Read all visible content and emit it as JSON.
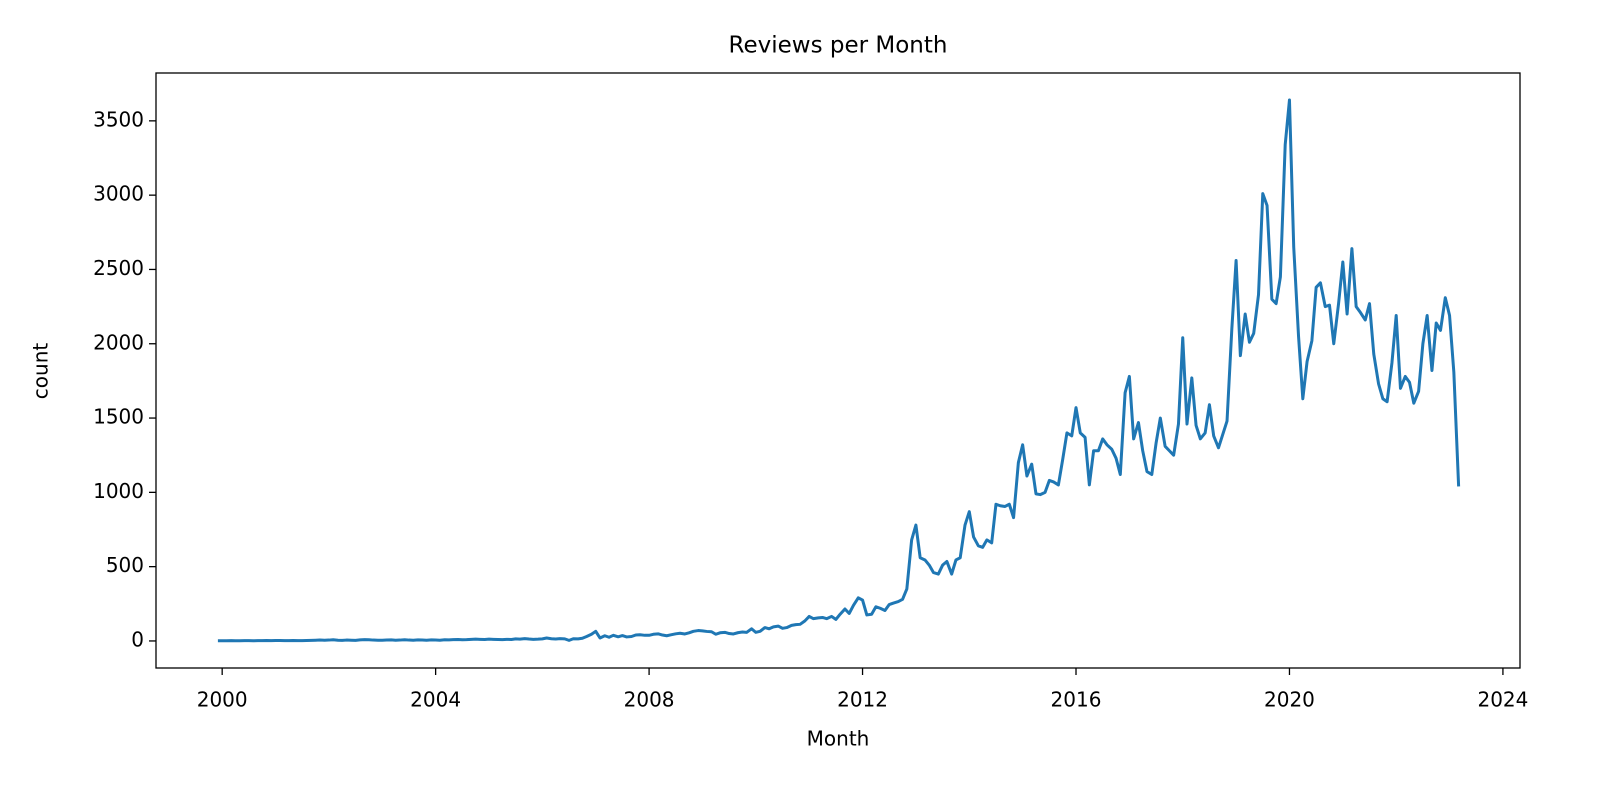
{
  "chart_data": {
    "type": "line",
    "title": "Reviews per Month",
    "x_label": "Month",
    "y_label": "count",
    "xlim": [
      1998.76,
      2024.32
    ],
    "xticks": [
      2000,
      2004,
      2008,
      2012,
      2016,
      2020,
      2024
    ],
    "ylim": [
      -182,
      3822
    ],
    "yticks": [
      0,
      500,
      1000,
      1500,
      2000,
      2500,
      3000,
      3500
    ],
    "grid": false,
    "x": [
      1999.92,
      2000.0,
      2000.08,
      2000.17,
      2000.25,
      2000.33,
      2000.42,
      2000.5,
      2000.58,
      2000.67,
      2000.75,
      2000.83,
      2000.92,
      2001.0,
      2001.08,
      2001.17,
      2001.25,
      2001.33,
      2001.42,
      2001.5,
      2001.58,
      2001.67,
      2001.75,
      2001.83,
      2001.92,
      2002.0,
      2002.08,
      2002.17,
      2002.25,
      2002.33,
      2002.42,
      2002.5,
      2002.58,
      2002.67,
      2002.75,
      2002.83,
      2002.92,
      2003.0,
      2003.08,
      2003.17,
      2003.25,
      2003.33,
      2003.42,
      2003.5,
      2003.58,
      2003.67,
      2003.75,
      2003.83,
      2003.92,
      2004.0,
      2004.08,
      2004.17,
      2004.25,
      2004.33,
      2004.42,
      2004.5,
      2004.58,
      2004.67,
      2004.75,
      2004.83,
      2004.92,
      2005.0,
      2005.08,
      2005.17,
      2005.25,
      2005.33,
      2005.42,
      2005.5,
      2005.58,
      2005.67,
      2005.75,
      2005.83,
      2005.92,
      2006.0,
      2006.08,
      2006.17,
      2006.25,
      2006.33,
      2006.42,
      2006.5,
      2006.58,
      2006.67,
      2006.75,
      2006.83,
      2006.92,
      2007.0,
      2007.08,
      2007.17,
      2007.25,
      2007.33,
      2007.42,
      2007.5,
      2007.58,
      2007.67,
      2007.75,
      2007.83,
      2007.92,
      2008.0,
      2008.08,
      2008.17,
      2008.25,
      2008.33,
      2008.42,
      2008.5,
      2008.58,
      2008.67,
      2008.75,
      2008.83,
      2008.92,
      2009.0,
      2009.08,
      2009.17,
      2009.25,
      2009.33,
      2009.42,
      2009.5,
      2009.58,
      2009.67,
      2009.75,
      2009.83,
      2009.92,
      2010.0,
      2010.08,
      2010.17,
      2010.25,
      2010.33,
      2010.42,
      2010.5,
      2010.58,
      2010.67,
      2010.75,
      2010.83,
      2010.92,
      2011.0,
      2011.08,
      2011.17,
      2011.25,
      2011.33,
      2011.42,
      2011.5,
      2011.58,
      2011.67,
      2011.75,
      2011.83,
      2011.92,
      2012.0,
      2012.08,
      2012.17,
      2012.25,
      2012.33,
      2012.42,
      2012.5,
      2012.58,
      2012.67,
      2012.75,
      2012.83,
      2012.92,
      2013.0,
      2013.08,
      2013.17,
      2013.25,
      2013.33,
      2013.42,
      2013.5,
      2013.58,
      2013.67,
      2013.75,
      2013.83,
      2013.92,
      2014.0,
      2014.08,
      2014.17,
      2014.25,
      2014.33,
      2014.42,
      2014.5,
      2014.58,
      2014.67,
      2014.75,
      2014.83,
      2014.92,
      2015.0,
      2015.08,
      2015.17,
      2015.25,
      2015.33,
      2015.42,
      2015.5,
      2015.58,
      2015.67,
      2015.75,
      2015.83,
      2015.92,
      2016.0,
      2016.08,
      2016.17,
      2016.25,
      2016.33,
      2016.42,
      2016.5,
      2016.58,
      2016.67,
      2016.75,
      2016.83,
      2016.92,
      2017.0,
      2017.08,
      2017.17,
      2017.25,
      2017.33,
      2017.42,
      2017.5,
      2017.58,
      2017.67,
      2017.75,
      2017.83,
      2017.92,
      2018.0,
      2018.08,
      2018.17,
      2018.25,
      2018.33,
      2018.42,
      2018.5,
      2018.58,
      2018.67,
      2018.75,
      2018.83,
      2018.92,
      2019.0,
      2019.08,
      2019.17,
      2019.25,
      2019.33,
      2019.42,
      2019.5,
      2019.58,
      2019.67,
      2019.75,
      2019.83,
      2019.92,
      2020.0,
      2020.08,
      2020.17,
      2020.25,
      2020.33,
      2020.42,
      2020.5,
      2020.58,
      2020.67,
      2020.75,
      2020.83,
      2020.92,
      2021.0,
      2021.08,
      2021.17,
      2021.25,
      2021.33,
      2021.42,
      2021.5,
      2021.58,
      2021.67,
      2021.75,
      2021.83,
      2021.92,
      2022.0,
      2022.08,
      2022.17,
      2022.25,
      2022.33,
      2022.42,
      2022.5,
      2022.58,
      2022.67,
      2022.75,
      2022.83,
      2022.92,
      2023.0,
      2023.08,
      2023.17
    ],
    "series": [
      {
        "color": "#1f77b4",
        "values": [
          1,
          1,
          1,
          2,
          1,
          1,
          2,
          2,
          1,
          2,
          2,
          3,
          2,
          3,
          3,
          2,
          2,
          3,
          2,
          2,
          3,
          4,
          5,
          6,
          5,
          6,
          8,
          5,
          4,
          6,
          5,
          4,
          7,
          9,
          8,
          6,
          5,
          5,
          6,
          7,
          5,
          6,
          8,
          6,
          5,
          7,
          6,
          5,
          7,
          6,
          5,
          8,
          7,
          9,
          10,
          8,
          9,
          11,
          12,
          11,
          10,
          12,
          11,
          10,
          9,
          11,
          10,
          14,
          12,
          16,
          13,
          11,
          12,
          14,
          20,
          15,
          13,
          16,
          14,
          4,
          15,
          14,
          18,
          30,
          45,
          65,
          20,
          35,
          25,
          38,
          28,
          36,
          27,
          30,
          40,
          42,
          38,
          38,
          45,
          48,
          40,
          35,
          42,
          48,
          52,
          47,
          55,
          65,
          70,
          68,
          64,
          62,
          45,
          55,
          58,
          50,
          47,
          56,
          60,
          58,
          82,
          58,
          65,
          90,
          82,
          95,
          100,
          85,
          90,
          105,
          110,
          112,
          135,
          165,
          150,
          155,
          158,
          150,
          165,
          145,
          180,
          215,
          185,
          240,
          290,
          275,
          175,
          180,
          230,
          220,
          205,
          245,
          255,
          265,
          280,
          350,
          680,
          780,
          560,
          545,
          510,
          460,
          450,
          510,
          535,
          450,
          545,
          560,
          780,
          870,
          700,
          640,
          630,
          680,
          660,
          920,
          910,
          905,
          920,
          830,
          1200,
          1320,
          1110,
          1190,
          990,
          985,
          1000,
          1080,
          1070,
          1050,
          1220,
          1400,
          1380,
          1570,
          1400,
          1370,
          1050,
          1280,
          1280,
          1360,
          1320,
          1290,
          1230,
          1120,
          1670,
          1780,
          1360,
          1470,
          1280,
          1140,
          1120,
          1330,
          1500,
          1310,
          1280,
          1250,
          1460,
          2040,
          1460,
          1770,
          1450,
          1360,
          1400,
          1590,
          1380,
          1300,
          1390,
          1480,
          2100,
          2560,
          1920,
          2200,
          2010,
          2070,
          2330,
          3010,
          2930,
          2300,
          2270,
          2450,
          3340,
          3640,
          2650,
          2050,
          1630,
          1880,
          2020,
          2380,
          2410,
          2250,
          2260,
          2000,
          2270,
          2550,
          2200,
          2640,
          2250,
          2210,
          2160,
          2270,
          1930,
          1730,
          1630,
          1610,
          1870,
          2190,
          1700,
          1780,
          1740,
          1600,
          1680,
          2000,
          2190,
          1820,
          2140,
          2090,
          2310,
          2190,
          1810,
          1040
        ]
      }
    ]
  }
}
